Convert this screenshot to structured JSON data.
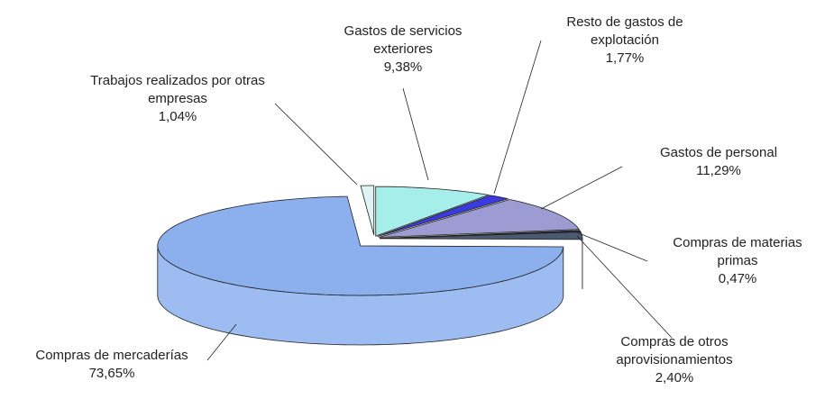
{
  "chart_data": {
    "type": "pie3d",
    "categories": [
      "Gastos de servicios exteriores",
      "Resto de gastos de explotación",
      "Gastos de personal",
      "Compras de materias primas",
      "Compras de otros aprovisionamientos",
      "Compras de mercaderías",
      "Trabajos realizados por otras empresas"
    ],
    "values": [
      9.38,
      1.77,
      11.29,
      0.47,
      2.4,
      73.65,
      1.04
    ],
    "value_labels": [
      "9,38%",
      "1,77%",
      "11,29%",
      "0,47%",
      "2,40%",
      "73,65%",
      "1,04%"
    ],
    "colors": [
      "#a6eeea",
      "#3a3ae0",
      "#9c9cd2",
      "#24284a",
      "#4a5a70",
      "#8cb0ee",
      "#def4f4"
    ]
  }
}
